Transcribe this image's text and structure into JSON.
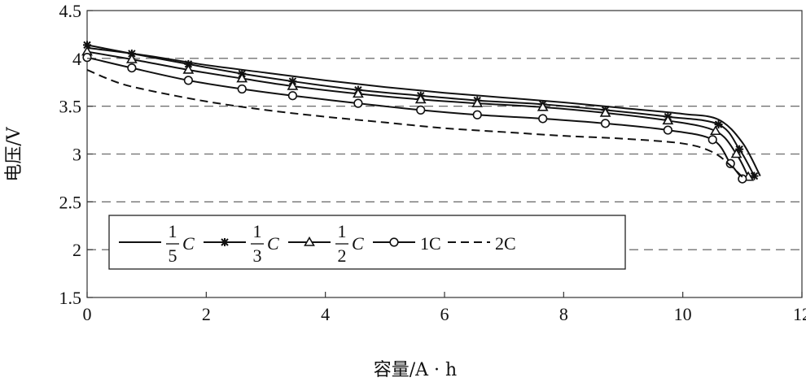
{
  "chart_data": {
    "type": "line",
    "xlabel": "容量/A · h",
    "ylabel": "电压/V",
    "xlim": [
      0,
      12
    ],
    "ylim": [
      1.5,
      4.5
    ],
    "xticks": [
      "0",
      "2",
      "4",
      "6",
      "8",
      "10",
      "12"
    ],
    "yticks": [
      "1.5",
      "2",
      "2.5",
      "3",
      "3.5",
      "4",
      "4.5"
    ],
    "grid": "horizontal dashed at 2, 2.5, 3, 3.5, 4",
    "legend_position": "lower-left",
    "series": [
      {
        "name": "1/5 C",
        "legend_num": "1",
        "legend_den": "5",
        "legend_unit": "C",
        "marker": "none",
        "dash": "solid",
        "x": [
          0,
          1,
          2,
          3,
          4,
          5,
          6,
          7,
          8,
          9,
          10,
          10.6,
          11.0,
          11.3
        ],
        "y": [
          4.11,
          4.03,
          3.93,
          3.85,
          3.77,
          3.7,
          3.64,
          3.59,
          3.54,
          3.48,
          3.42,
          3.36,
          3.12,
          2.77
        ]
      },
      {
        "name": "1/3 C",
        "legend_num": "1",
        "legend_den": "3",
        "legend_unit": "C",
        "marker": "star",
        "dash": "solid",
        "x": [
          0,
          0.75,
          1.7,
          2.6,
          3.45,
          4.55,
          5.6,
          6.55,
          7.65,
          8.7,
          9.75,
          10.6,
          10.95,
          11.2
        ],
        "y": [
          4.14,
          4.05,
          3.94,
          3.84,
          3.76,
          3.67,
          3.61,
          3.56,
          3.52,
          3.46,
          3.39,
          3.31,
          3.05,
          2.77
        ]
      },
      {
        "name": "1/2 C",
        "legend_num": "1",
        "legend_den": "2",
        "legend_unit": "C",
        "marker": "triangle",
        "dash": "solid",
        "x": [
          0,
          0.75,
          1.7,
          2.6,
          3.45,
          4.55,
          5.6,
          6.55,
          7.65,
          8.7,
          9.75,
          10.55,
          10.9,
          11.1
        ],
        "y": [
          4.07,
          3.99,
          3.88,
          3.79,
          3.71,
          3.63,
          3.57,
          3.53,
          3.49,
          3.43,
          3.35,
          3.24,
          3.0,
          2.76
        ]
      },
      {
        "name": "1C",
        "legend_num": "",
        "legend_den": "",
        "legend_unit": "1C",
        "marker": "circle",
        "dash": "solid",
        "x": [
          0,
          0.75,
          1.7,
          2.6,
          3.45,
          4.55,
          5.6,
          6.55,
          7.65,
          8.7,
          9.75,
          10.5,
          10.8,
          11.0
        ],
        "y": [
          4.01,
          3.9,
          3.77,
          3.68,
          3.61,
          3.53,
          3.46,
          3.41,
          3.37,
          3.32,
          3.25,
          3.15,
          2.9,
          2.74
        ]
      },
      {
        "name": "2C",
        "legend_num": "",
        "legend_den": "",
        "legend_unit": "2C",
        "marker": "none",
        "dash": "dashed",
        "x": [
          0,
          0.5,
          1.0,
          2.0,
          3.0,
          4.0,
          5.0,
          6.0,
          7.0,
          8.0,
          9.0,
          10.0,
          10.5,
          10.8,
          11.0
        ],
        "y": [
          3.88,
          3.75,
          3.67,
          3.55,
          3.46,
          3.39,
          3.33,
          3.27,
          3.23,
          3.19,
          3.16,
          3.11,
          3.02,
          2.88,
          2.76
        ]
      }
    ]
  }
}
